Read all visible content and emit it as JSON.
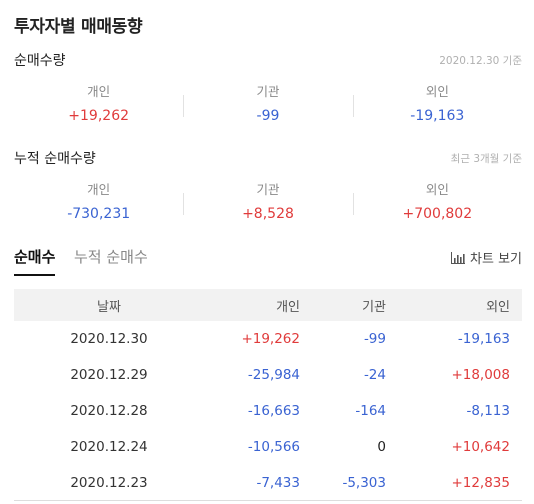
{
  "page": {
    "title": "투자자별 매매동향"
  },
  "net_volume": {
    "label": "순매수량",
    "note": "2020.12.30 기준",
    "cells": [
      {
        "label": "개인",
        "value": "+19,262",
        "sign": "pos"
      },
      {
        "label": "기관",
        "value": "-99",
        "sign": "neg"
      },
      {
        "label": "외인",
        "value": "-19,163",
        "sign": "neg"
      }
    ]
  },
  "cumulative_volume": {
    "label": "누적 순매수량",
    "note": "최근 3개월 기준",
    "cells": [
      {
        "label": "개인",
        "value": "-730,231",
        "sign": "neg"
      },
      {
        "label": "기관",
        "value": "+8,528",
        "sign": "pos"
      },
      {
        "label": "외인",
        "value": "+700,802",
        "sign": "pos"
      }
    ]
  },
  "tabs": [
    {
      "label": "순매수",
      "active": true
    },
    {
      "label": "누적 순매수",
      "active": false
    }
  ],
  "chart_button": {
    "label": "차트 보기",
    "icon": "bar-chart-icon"
  },
  "table": {
    "headers": {
      "date": "날짜",
      "individual": "개인",
      "institution": "기관",
      "foreign": "외인"
    },
    "rows": [
      {
        "date": "2020.12.30",
        "individual": "+19,262",
        "institution": "-99",
        "foreign": "-19,163"
      },
      {
        "date": "2020.12.29",
        "individual": "-25,984",
        "institution": "-24",
        "foreign": "+18,008"
      },
      {
        "date": "2020.12.28",
        "individual": "-16,663",
        "institution": "-164",
        "foreign": "-8,113"
      },
      {
        "date": "2020.12.24",
        "individual": "-10,566",
        "institution": "0",
        "foreign": "+10,642"
      },
      {
        "date": "2020.12.23",
        "individual": "-7,433",
        "institution": "-5,303",
        "foreign": "+12,835"
      }
    ]
  },
  "colors": {
    "positive": "#e03b3b",
    "negative": "#3a63d2",
    "neutral": "#222222"
  }
}
